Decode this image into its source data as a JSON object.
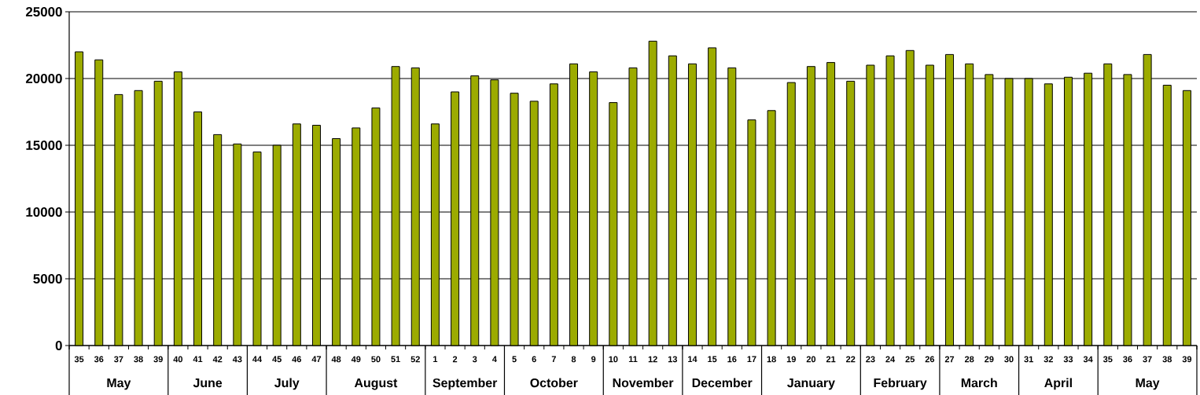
{
  "chart_data": {
    "type": "bar",
    "color": "#9cab00",
    "categories": [
      "35",
      "36",
      "37",
      "38",
      "39",
      "40",
      "41",
      "42",
      "43",
      "44",
      "45",
      "46",
      "47",
      "48",
      "49",
      "50",
      "51",
      "52",
      "1",
      "2",
      "3",
      "4",
      "5",
      "6",
      "7",
      "8",
      "9",
      "10",
      "11",
      "12",
      "13",
      "14",
      "15",
      "16",
      "17",
      "18",
      "19",
      "20",
      "21",
      "22",
      "23",
      "24",
      "25",
      "26",
      "27",
      "28",
      "29",
      "30",
      "31",
      "32",
      "33",
      "34",
      "35",
      "36",
      "37",
      "38",
      "39"
    ],
    "values": [
      22000,
      21400,
      18800,
      19100,
      19800,
      20500,
      17500,
      15800,
      15100,
      14500,
      15000,
      16600,
      16500,
      15500,
      16300,
      17800,
      20900,
      20800,
      16600,
      19000,
      20200,
      19900,
      18900,
      18300,
      19600,
      21100,
      20500,
      18200,
      20800,
      22800,
      21700,
      21100,
      22300,
      20800,
      16900,
      17600,
      19700,
      20900,
      21200,
      19800,
      21000,
      21700,
      22100,
      21000,
      21800,
      21100,
      20300,
      20000,
      20000,
      19600,
      20100,
      20400,
      21100,
      20300,
      21800,
      19500,
      19100
    ],
    "ylim": [
      0,
      25000
    ],
    "yticks": [
      0,
      5000,
      10000,
      15000,
      20000,
      25000
    ],
    "grid": "y",
    "annotations": [
      "May",
      "June",
      "July",
      "August",
      "September",
      "October",
      "November",
      "December",
      "January",
      "February",
      "March",
      "April",
      "May"
    ]
  }
}
